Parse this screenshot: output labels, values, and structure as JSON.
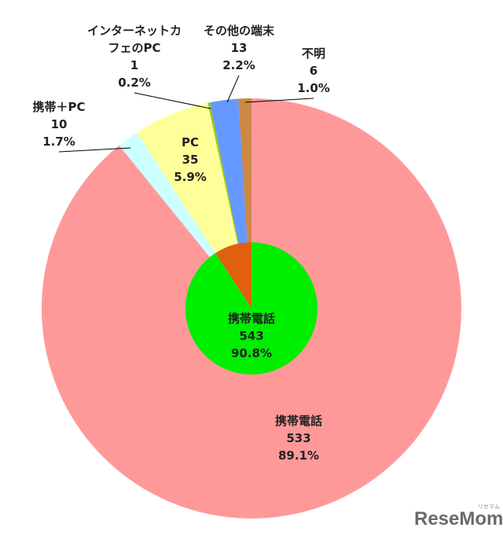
{
  "chart_data": {
    "type": "pie",
    "outer": {
      "slices": [
        {
          "lines": [
            "携帯電話",
            "533",
            "89.1%"
          ],
          "value": 533,
          "percent": 89.1,
          "color": "#ff9999"
        },
        {
          "lines": [
            "携帯＋PC",
            "10",
            "1.7%"
          ],
          "value": 10,
          "percent": 1.7,
          "color": "#ccffff"
        },
        {
          "lines": [
            "PC",
            "35",
            "5.9%"
          ],
          "value": 35,
          "percent": 5.9,
          "color": "#ffff99"
        },
        {
          "lines": [
            "インターネットカ",
            "フェのPC",
            "1",
            "0.2%"
          ],
          "value": 1,
          "percent": 0.2,
          "color": "#99cc00"
        },
        {
          "lines": [
            "その他の端末",
            "13",
            "2.2%"
          ],
          "value": 13,
          "percent": 2.2,
          "color": "#6699ff"
        },
        {
          "lines": [
            "不明",
            "6",
            "1.0%"
          ],
          "value": 6,
          "percent": 1.0,
          "color": "#cc8844"
        }
      ]
    },
    "inner": {
      "slices": [
        {
          "lines": [
            "携帯電話",
            "543",
            "90.8%"
          ],
          "value": 543,
          "percent": 90.8,
          "color": "#00ee00"
        },
        {
          "lines": [],
          "value": 55,
          "percent": 9.2,
          "color": "#e06010"
        }
      ]
    }
  },
  "watermark": {
    "brand": "ReseMom",
    "sub": "リセマム"
  }
}
